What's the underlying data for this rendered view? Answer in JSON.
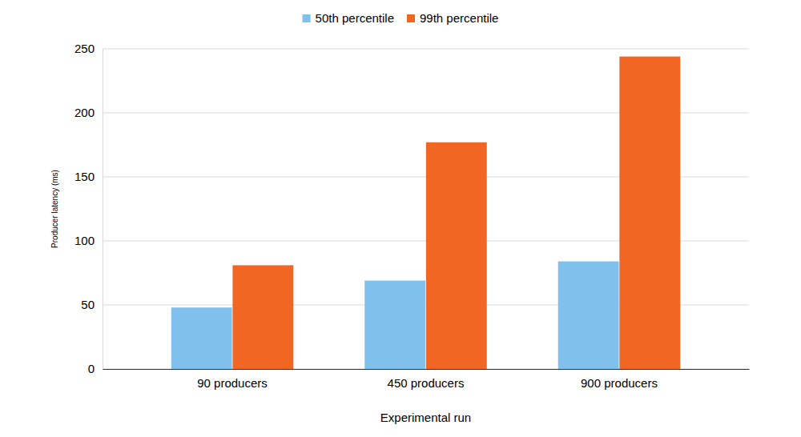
{
  "chart_data": {
    "type": "bar",
    "categories": [
      "90 producers",
      "450 producers",
      "900 producers"
    ],
    "series": [
      {
        "name": "50th percentile",
        "color": "#7fc0ec",
        "values": [
          48,
          69,
          84
        ]
      },
      {
        "name": "99th percentile",
        "color": "#f26624",
        "values": [
          81,
          177,
          244
        ]
      }
    ],
    "xlabel": "Experimental run",
    "ylabel": "Producer latency (ms)",
    "ylim": [
      0,
      250
    ],
    "yticks": [
      0,
      50,
      100,
      150,
      200,
      250
    ],
    "grid": true,
    "legend": "top"
  }
}
